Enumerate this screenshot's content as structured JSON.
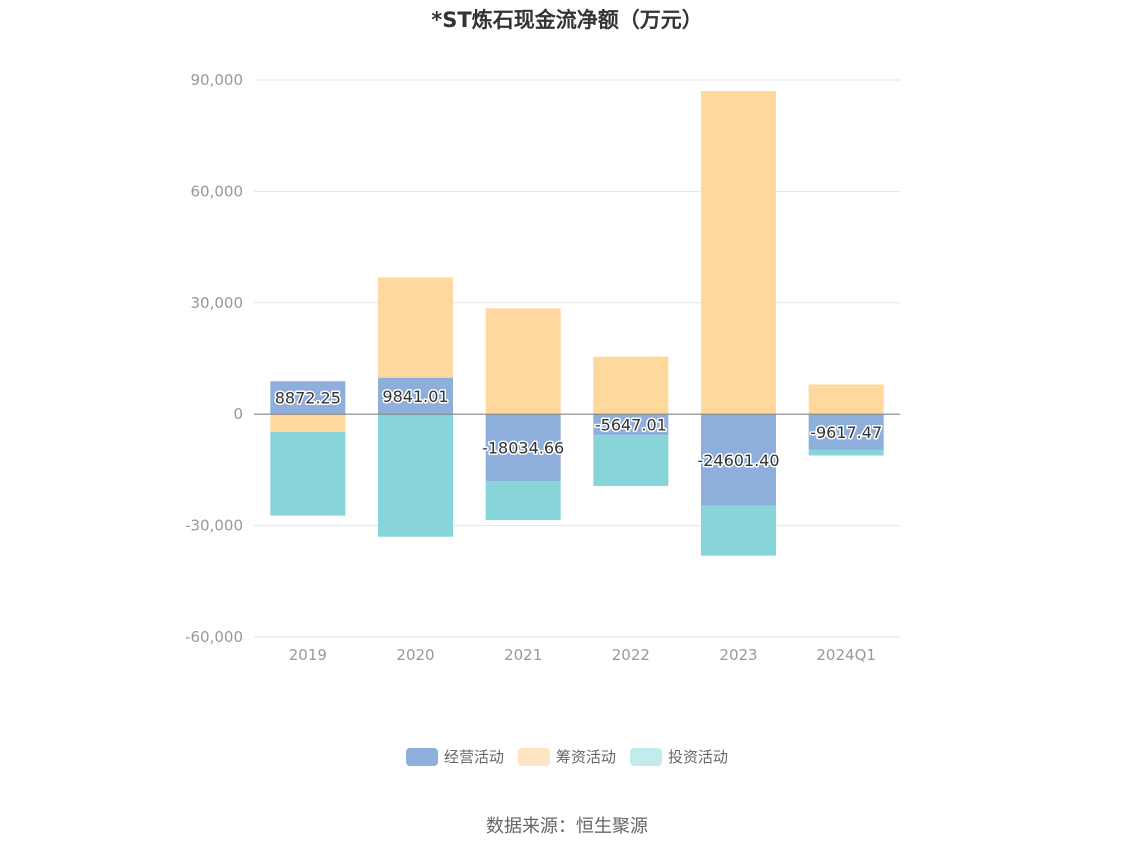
{
  "chart_data": {
    "type": "bar",
    "stacked": true,
    "title": "*ST炼石现金流净额（万元）",
    "categories": [
      "2019",
      "2020",
      "2021",
      "2022",
      "2023",
      "2024Q1"
    ],
    "series": [
      {
        "name": "经营活动",
        "color": "#8eaedc",
        "values": [
          8872.25,
          9841.01,
          -18034.66,
          -5647.01,
          -24601.4,
          -9617.47
        ],
        "labels": [
          "8872.25",
          "9841.01",
          "-18034.66",
          "-5647.01",
          "-24601.40",
          "-9617.47"
        ]
      },
      {
        "name": "筹资活动",
        "color": "#fed89c",
        "values": [
          -4800,
          27000,
          28500,
          15500,
          87000,
          8000
        ]
      },
      {
        "name": "投资活动",
        "color": "#87d5d8",
        "values": [
          -22500,
          -33000,
          -10500,
          -13700,
          -13500,
          -1500
        ]
      }
    ],
    "ylim": [
      -60000,
      90000
    ],
    "yticks": [
      90000,
      60000,
      30000,
      0,
      -30000,
      -60000
    ],
    "ytick_labels": [
      "90,000",
      "60,000",
      "30,000",
      "0",
      "-30,000",
      "-60,000"
    ],
    "legend_position": "bottom",
    "grid": true
  },
  "legend_swatch_colors": [
    "#8eaedc",
    "#fde4c2",
    "#c2ebec"
  ],
  "source": "数据来源：恒生聚源"
}
